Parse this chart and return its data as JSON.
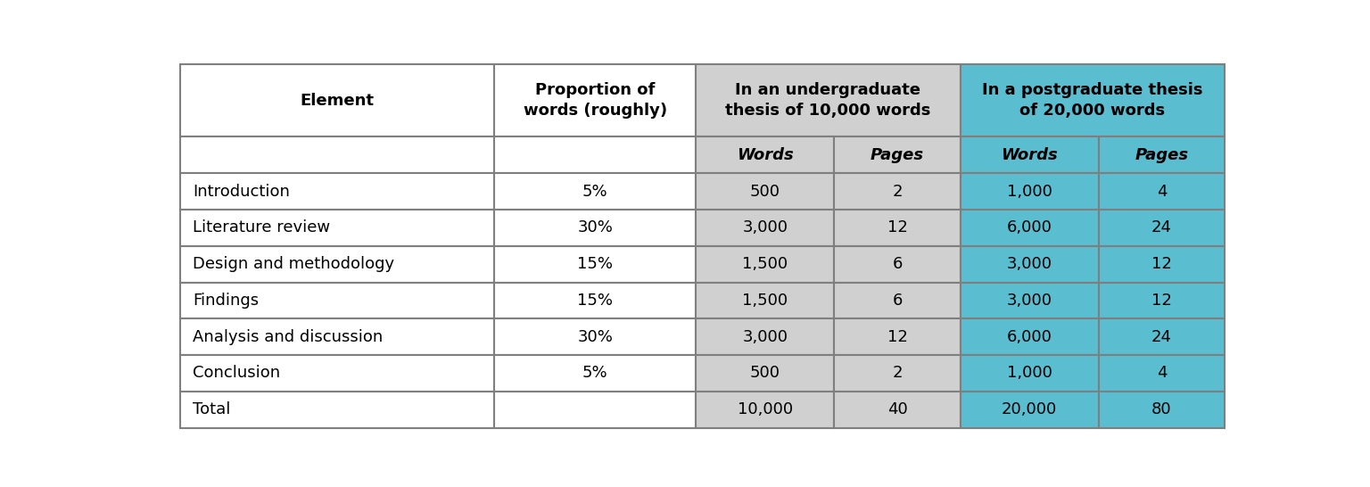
{
  "col_headers_row1": [
    "Element",
    "Proportion of\nwords (roughly)",
    "In an undergraduate\nthesis of 10,000 words",
    "",
    "In a postgraduate thesis\nof 20,000 words",
    ""
  ],
  "col_headers_row2": [
    "",
    "",
    "Words",
    "Pages",
    "Words",
    "Pages"
  ],
  "rows": [
    [
      "Introduction",
      "5%",
      "500",
      "2",
      "1,000",
      "4"
    ],
    [
      "Literature review",
      "30%",
      "3,000",
      "12",
      "6,000",
      "24"
    ],
    [
      "Design and methodology",
      "15%",
      "1,500",
      "6",
      "3,000",
      "12"
    ],
    [
      "Findings",
      "15%",
      "1,500",
      "6",
      "3,000",
      "12"
    ],
    [
      "Analysis and discussion",
      "30%",
      "3,000",
      "12",
      "6,000",
      "24"
    ],
    [
      "Conclusion",
      "5%",
      "500",
      "2",
      "1,000",
      "4"
    ],
    [
      "Total",
      "",
      "10,000",
      "40",
      "20,000",
      "80"
    ]
  ],
  "header_bg_grey": "#d0d0d0",
  "header_bg_cyan": "#5bbdd0",
  "data_bg_grey": "#d0d0d0",
  "data_bg_cyan": "#5bbdd0",
  "white": "#ffffff",
  "border_color": "#7f7f7f",
  "text_color": "#000000",
  "figure_bg": "#ffffff",
  "col_ratios": [
    2.5,
    1.6,
    1.1,
    1.0,
    1.1,
    1.0
  ],
  "row_ratios": [
    2.0,
    1.0,
    1.0,
    1.0,
    1.0,
    1.0,
    1.0,
    1.0,
    1.0
  ],
  "fontsize_header": 13,
  "fontsize_subheader": 13,
  "fontsize_data": 13
}
